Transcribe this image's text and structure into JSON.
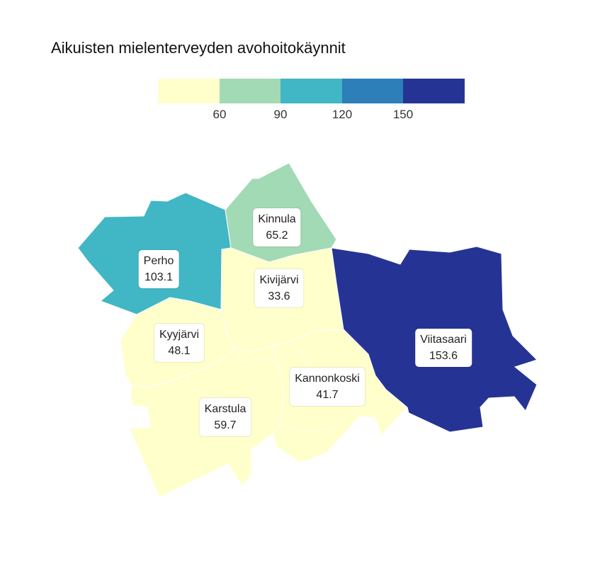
{
  "title": "Aikuisten mielenterveyden avohoitokäynnit",
  "legend": {
    "colors": [
      "#ffffcc",
      "#a1dab4",
      "#41b6c4",
      "#2c7fb8",
      "#253494"
    ],
    "ticks": [
      "60",
      "90",
      "120",
      "150"
    ]
  },
  "regions": [
    {
      "id": "perho",
      "name": "Perho",
      "value": "103.1",
      "color": "#41b6c4"
    },
    {
      "id": "kinnula",
      "name": "Kinnula",
      "value": "65.2",
      "color": "#a1dab4"
    },
    {
      "id": "kivijarvi",
      "name": "Kivijärvi",
      "value": "33.6",
      "color": "#ffffcc"
    },
    {
      "id": "kyyjarvi",
      "name": "Kyyjärvi",
      "value": "48.1",
      "color": "#ffffcc"
    },
    {
      "id": "karstula",
      "name": "Karstula",
      "value": "59.7",
      "color": "#ffffcc"
    },
    {
      "id": "kannonkoski",
      "name": "Kannonkoski",
      "value": "41.7",
      "color": "#ffffcc"
    },
    {
      "id": "viitasaari",
      "name": "Viitasaari",
      "value": "153.6",
      "color": "#253494"
    }
  ]
}
